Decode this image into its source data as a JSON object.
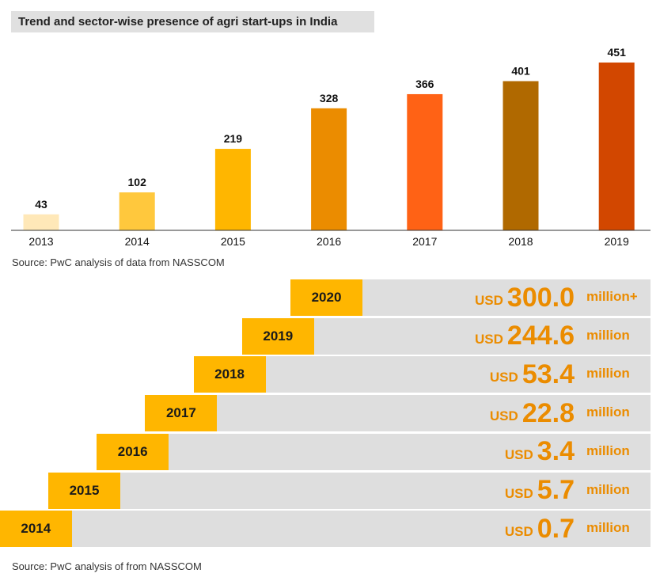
{
  "title": "Trend and sector-wise presence of agri start-ups in India",
  "chart_data": {
    "type": "bar",
    "title": "Trend and sector-wise presence of agri start-ups in India",
    "categories": [
      "2013",
      "2014",
      "2015",
      "2016",
      "2017",
      "2018",
      "2019"
    ],
    "values": [
      43,
      102,
      219,
      328,
      366,
      401,
      451
    ],
    "colors": [
      "#ffe8b8",
      "#ffc83d",
      "#ffb600",
      "#eb8c00",
      "#ff6215",
      "#b06900",
      "#d24700"
    ],
    "xlabel": "",
    "ylabel": "",
    "ylim": [
      0,
      451
    ],
    "grid": false,
    "legend": "none"
  },
  "source1": "Source: PwC analysis of data from NASSCOM",
  "funding": {
    "accent": "#ffb600",
    "value_color": "#eb8c00",
    "rows": [
      {
        "year": "2020",
        "currency": "USD",
        "amount": "300.0",
        "unit": "million+"
      },
      {
        "year": "2019",
        "currency": "USD",
        "amount": "244.6",
        "unit": "million"
      },
      {
        "year": "2018",
        "currency": "USD",
        "amount": "53.4",
        "unit": "million"
      },
      {
        "year": "2017",
        "currency": "USD",
        "amount": "22.8",
        "unit": "million"
      },
      {
        "year": "2016",
        "currency": "USD",
        "amount": "3.4",
        "unit": "million"
      },
      {
        "year": "2015",
        "currency": "USD",
        "amount": "5.7",
        "unit": "million"
      },
      {
        "year": "2014",
        "currency": "USD",
        "amount": "0.7",
        "unit": "million"
      }
    ]
  },
  "source2": "Source: PwC analysis of from NASSCOM"
}
